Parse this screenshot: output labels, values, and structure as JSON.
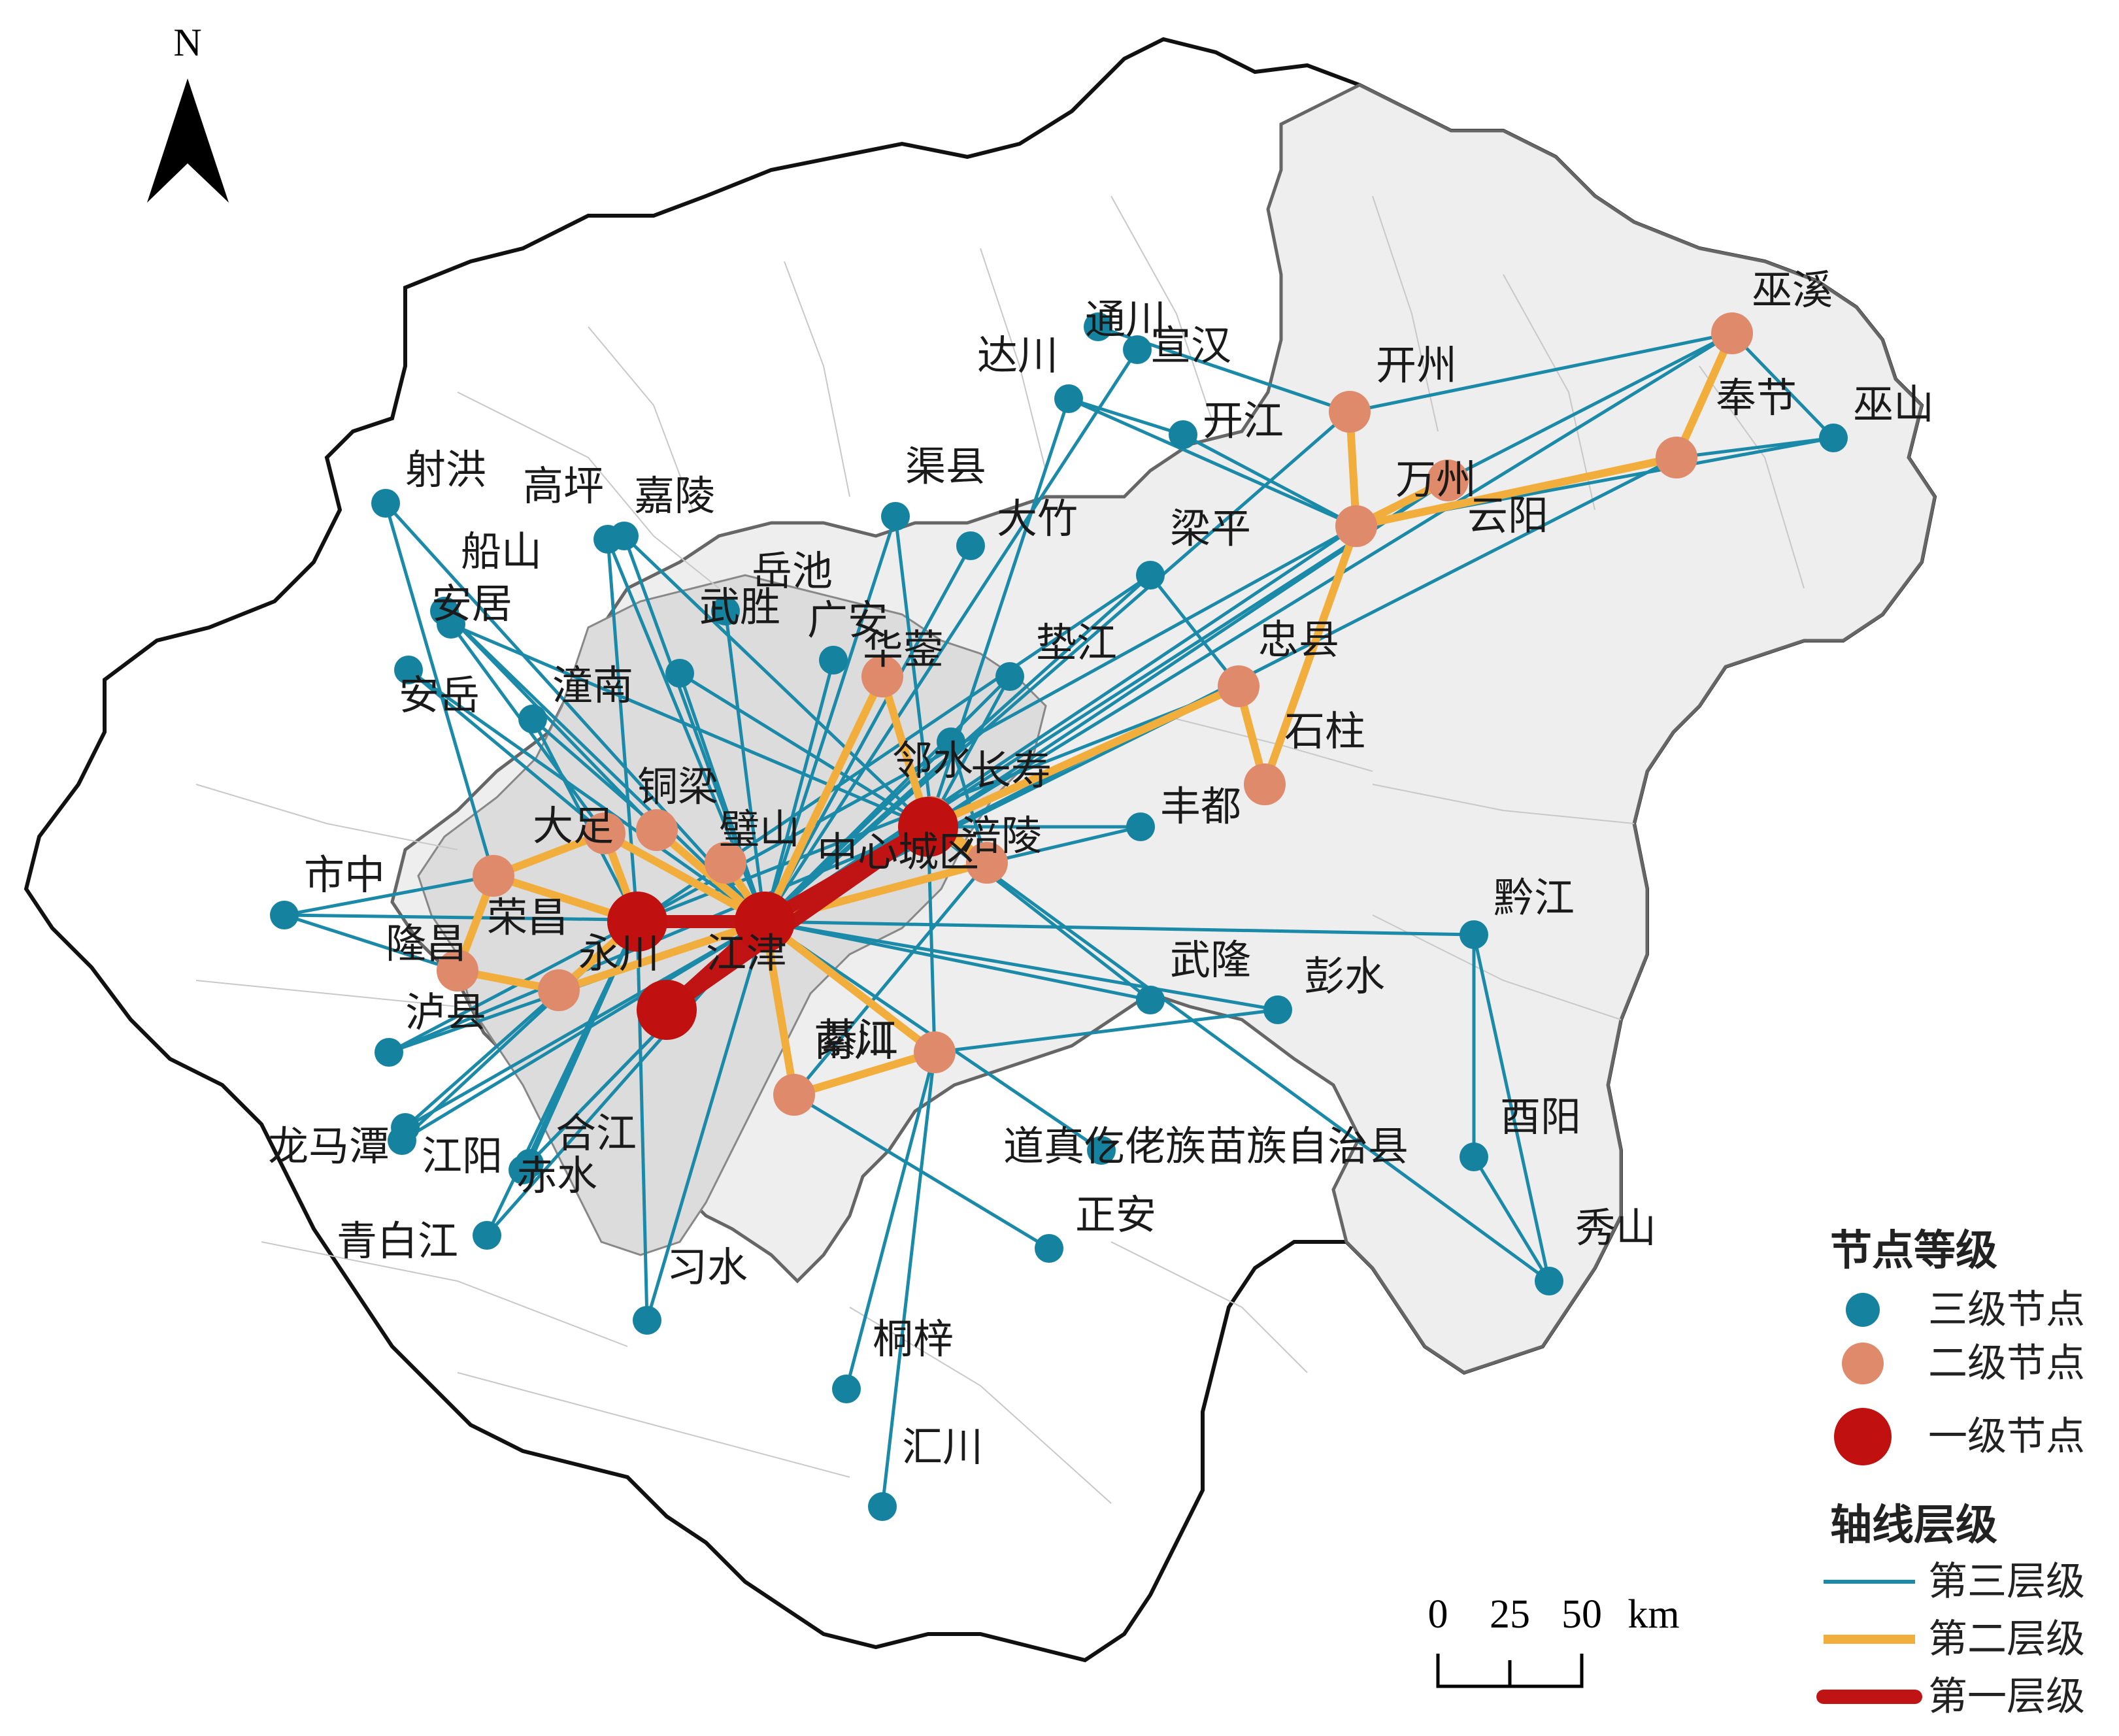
{
  "north": {
    "label": "N"
  },
  "colors": {
    "tier3_node": "#1583a0",
    "tier2_node": "#e08a6c",
    "tier1_node": "#c01010",
    "tier3_line": "#1a8aa8",
    "tier2_line": "#f2ae3c",
    "tier1_line": "#c01414",
    "region_fill": "#f0f0f0",
    "core_fill": "#dcdcdc"
  },
  "nodes": [
    {
      "id": "shehong",
      "name": "射洪",
      "tier": 3
    },
    {
      "id": "gaoping",
      "name": "高坪",
      "tier": 3
    },
    {
      "id": "jialing",
      "name": "嘉陵",
      "tier": 3
    },
    {
      "id": "chuanshan",
      "name": "船山",
      "tier": 3
    },
    {
      "id": "anju",
      "name": "安居",
      "tier": 3
    },
    {
      "id": "anyue",
      "name": "安岳",
      "tier": 3
    },
    {
      "id": "tongnan",
      "name": "潼南",
      "tier": 3
    },
    {
      "id": "wusheng",
      "name": "武胜",
      "tier": 3
    },
    {
      "id": "yuechi",
      "name": "岳池",
      "tier": 3
    },
    {
      "id": "guangan",
      "name": "广安",
      "tier": 3
    },
    {
      "id": "quxian",
      "name": "渠县",
      "tier": 3
    },
    {
      "id": "dazhu",
      "name": "大竹",
      "tier": 3
    },
    {
      "id": "dachuan",
      "name": "达川",
      "tier": 3
    },
    {
      "id": "tongchuan",
      "name": "通川",
      "tier": 3
    },
    {
      "id": "xuanhan",
      "name": "宣汉",
      "tier": 3
    },
    {
      "id": "kaijiang",
      "name": "开江",
      "tier": 3
    },
    {
      "id": "liangping",
      "name": "梁平",
      "tier": 3
    },
    {
      "id": "dianjiang",
      "name": "垫江",
      "tier": 3
    },
    {
      "id": "linshui",
      "name": "邻水",
      "tier": 3
    },
    {
      "id": "wushan",
      "name": "巫山",
      "tier": 3
    },
    {
      "id": "fengdu",
      "name": "丰都",
      "tier": 3
    },
    {
      "id": "shizhong",
      "name": "市中",
      "tier": 3
    },
    {
      "id": "luxian",
      "name": "泸县",
      "tier": 3
    },
    {
      "id": "longmatan",
      "name": "龙马潭",
      "tier": 3
    },
    {
      "id": "jiangyang",
      "name": "江阳",
      "tier": 3
    },
    {
      "id": "hejiang",
      "name": "合江",
      "tier": 3
    },
    {
      "id": "chishui",
      "name": "赤水",
      "tier": 3
    },
    {
      "id": "xishui",
      "name": "习水",
      "tier": 3
    },
    {
      "id": "qingbaijiang",
      "name": "青白江",
      "tier": 3
    },
    {
      "id": "tongzi",
      "name": "桐梓",
      "tier": 3
    },
    {
      "id": "huichuan",
      "name": "汇川",
      "tier": 3
    },
    {
      "id": "zhengan",
      "name": "正安",
      "tier": 3
    },
    {
      "id": "daozhen",
      "name": "道真仡佬族苗族自治县",
      "tier": 3
    },
    {
      "id": "wulong",
      "name": "武隆",
      "tier": 3
    },
    {
      "id": "pengshui",
      "name": "彭水",
      "tier": 3
    },
    {
      "id": "qianjiang",
      "name": "黔江",
      "tier": 3
    },
    {
      "id": "youyang",
      "name": "酉阳",
      "tier": 3
    },
    {
      "id": "xiushan",
      "name": "秀山",
      "tier": 3
    },
    {
      "id": "zhongxian_dummy",
      "name": "",
      "tier": 0
    },
    {
      "id": "wuxi",
      "name": "巫溪",
      "tier": 2
    },
    {
      "id": "kaizhou",
      "name": "开州",
      "tier": 2
    },
    {
      "id": "fengjie",
      "name": "奉节",
      "tier": 2
    },
    {
      "id": "wanzhou",
      "name": "万州",
      "tier": 2
    },
    {
      "id": "yunyang",
      "name": "云阳",
      "tier": 2
    },
    {
      "id": "zhongxian",
      "name": "忠县",
      "tier": 2
    },
    {
      "id": "shizhu",
      "name": "石柱",
      "tier": 2
    },
    {
      "id": "huaying",
      "name": "华蓥",
      "tier": 2
    },
    {
      "id": "changshou",
      "name": "长寿",
      "tier": 2
    },
    {
      "id": "fuling",
      "name": "涪陵",
      "tier": 2
    },
    {
      "id": "dazu",
      "name": "大足",
      "tier": 2
    },
    {
      "id": "tongliang",
      "name": "铜梁",
      "tier": 2
    },
    {
      "id": "bishan",
      "name": "璧山",
      "tier": 2
    },
    {
      "id": "rongchang",
      "name": "荣昌",
      "tier": 2
    },
    {
      "id": "longchang",
      "name": "隆昌",
      "tier": 2
    },
    {
      "id": "luxian2",
      "name": "",
      "tier": 0
    },
    {
      "id": "qijiang",
      "name": "綦江",
      "tier": 2
    },
    {
      "id": "nanchuan",
      "name": "南川",
      "tier": 2
    },
    {
      "id": "zhongxincheng",
      "name": "中心城区",
      "tier": 1
    },
    {
      "id": "yongchuan",
      "name": "永川",
      "tier": 1
    },
    {
      "id": "jiangjin",
      "name": "江津",
      "tier": 1
    }
  ],
  "legend": {
    "nodes_title": "节点等级",
    "node_items": [
      {
        "label": "三级节点",
        "tier": 3
      },
      {
        "label": "二级节点",
        "tier": 2
      },
      {
        "label": "一级节点",
        "tier": 1
      }
    ],
    "lines_title": "轴线层级",
    "line_items": [
      {
        "label": "第三层级",
        "tier": 3
      },
      {
        "label": "第二层级",
        "tier": 2
      },
      {
        "label": "第一层级",
        "tier": 1
      }
    ]
  },
  "scale_bar": {
    "ticks": [
      "0",
      "25",
      "50"
    ],
    "unit": "km"
  }
}
